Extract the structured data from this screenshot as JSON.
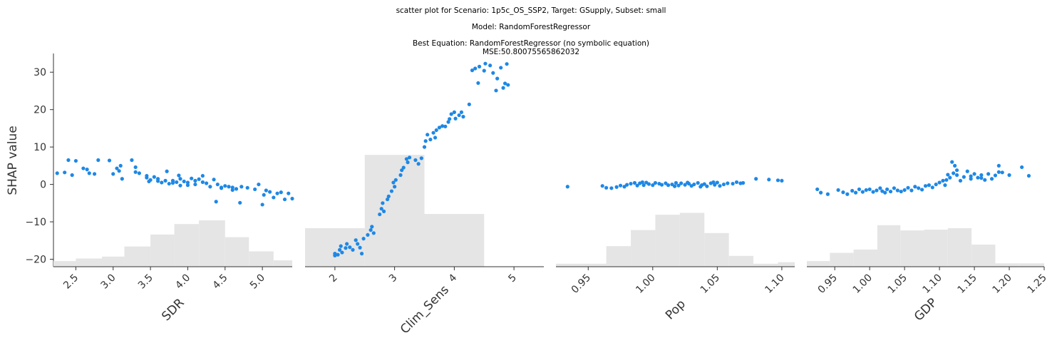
{
  "header": {
    "line1": "scatter plot for Scenario: 1p5c_OS_SSP2, Target: GSupply, Subset: small",
    "line2": "Model: RandomForestRegressor",
    "line3": "Best Equation: RandomForestRegressor (no symbolic equation)",
    "line4": "MSE:50.80075565862032"
  },
  "chart_data": {
    "type": "scatter",
    "ylabel": "SHAP value",
    "ylim": [
      -22,
      35
    ],
    "yticks": [
      -20,
      -10,
      0,
      10,
      20,
      30
    ],
    "ytick_labels": [
      "−20",
      "−10",
      "0",
      "10",
      "20",
      "30"
    ],
    "colors": {
      "points": "#1e88e5",
      "hist": "#e5e5e5",
      "axis": "#333333"
    },
    "panels": [
      {
        "xlabel": "SDR",
        "xlim": [
          2.2,
          5.4
        ],
        "xticks": [
          2.5,
          3.0,
          3.5,
          4.0,
          4.5,
          5.0
        ],
        "xtick_labels": [
          "2.5",
          "3.0",
          "3.5",
          "4.0",
          "4.5",
          "5.0"
        ],
        "rotation": 45,
        "hist_edges": [
          2.2,
          2.5,
          2.85,
          3.15,
          3.5,
          3.82,
          4.15,
          4.5,
          4.82,
          5.15,
          5.4
        ],
        "hist_tops": [
          -20.5,
          -19.8,
          -19.3,
          -16.6,
          -13.4,
          -10.6,
          -9.6,
          -14.1,
          -17.9,
          -20.3
        ],
        "points": [
          [
            2.25,
            3.0
          ],
          [
            2.35,
            3.2
          ],
          [
            2.4,
            6.5
          ],
          [
            2.45,
            2.5
          ],
          [
            2.5,
            6.3
          ],
          [
            2.6,
            4.3
          ],
          [
            2.65,
            4.0
          ],
          [
            2.68,
            3.0
          ],
          [
            2.75,
            2.8
          ],
          [
            2.8,
            6.5
          ],
          [
            2.95,
            6.4
          ],
          [
            3.0,
            2.8
          ],
          [
            3.05,
            4.3
          ],
          [
            3.1,
            5.0
          ],
          [
            3.08,
            3.6
          ],
          [
            3.12,
            1.5
          ],
          [
            3.25,
            6.5
          ],
          [
            3.3,
            4.6
          ],
          [
            3.35,
            3.0
          ],
          [
            3.45,
            1.8
          ],
          [
            3.48,
            0.8
          ],
          [
            3.5,
            1.2
          ],
          [
            3.55,
            2.0
          ],
          [
            3.6,
            1.5
          ],
          [
            3.65,
            0.5
          ],
          [
            3.7,
            1.0
          ],
          [
            3.72,
            3.5
          ],
          [
            3.75,
            0.2
          ],
          [
            3.8,
            1.0
          ],
          [
            3.85,
            0.6
          ],
          [
            3.88,
            2.4
          ],
          [
            3.9,
            -0.3
          ],
          [
            3.95,
            0.8
          ],
          [
            4.0,
            0.5
          ],
          [
            4.05,
            1.6
          ],
          [
            4.1,
            0.0
          ],
          [
            4.15,
            1.4
          ],
          [
            4.2,
            2.3
          ],
          [
            4.25,
            0.3
          ],
          [
            4.3,
            -0.6
          ],
          [
            4.35,
            1.3
          ],
          [
            4.38,
            -4.6
          ],
          [
            4.4,
            0.0
          ],
          [
            4.45,
            -0.8
          ],
          [
            4.5,
            -0.4
          ],
          [
            4.55,
            -0.6
          ],
          [
            4.6,
            -0.8
          ],
          [
            4.65,
            -1.2
          ],
          [
            4.7,
            -4.9
          ],
          [
            4.72,
            -0.6
          ],
          [
            4.8,
            -0.9
          ],
          [
            4.9,
            -1.3
          ],
          [
            4.95,
            0.0
          ],
          [
            5.0,
            -5.4
          ],
          [
            5.02,
            -2.8
          ],
          [
            5.05,
            -1.6
          ],
          [
            5.1,
            -2.0
          ],
          [
            5.15,
            -3.5
          ],
          [
            5.2,
            -2.4
          ],
          [
            5.25,
            -2.1
          ],
          [
            5.3,
            -4.0
          ],
          [
            5.35,
            -2.4
          ],
          [
            5.4,
            -3.8
          ],
          [
            5.45,
            -2.0
          ],
          [
            5.5,
            -2.8
          ],
          [
            3.6,
            0.9
          ],
          [
            3.9,
            1.5
          ],
          [
            4.0,
            -0.2
          ],
          [
            4.2,
            0.6
          ],
          [
            4.45,
            -1.0
          ],
          [
            4.6,
            -1.5
          ],
          [
            3.3,
            3.3
          ],
          [
            3.45,
            2.3
          ],
          [
            3.8,
            0.4
          ],
          [
            4.1,
            1.0
          ]
        ]
      },
      {
        "xlabel": "Clim_Sens",
        "xlim": [
          1.5,
          5.5
        ],
        "xticks": [
          2,
          3,
          4,
          5
        ],
        "xtick_labels": [
          "2",
          "3",
          "4",
          "5"
        ],
        "rotation": 45,
        "hist_edges": [
          1.5,
          2.5,
          3.5,
          4.5
        ],
        "hist_tops": [
          -11.7,
          7.9,
          -7.9
        ],
        "points": [
          [
            2.0,
            -19.0
          ],
          [
            2.0,
            -18.5
          ],
          [
            2.05,
            -18.8
          ],
          [
            2.08,
            -17.5
          ],
          [
            2.1,
            -16.5
          ],
          [
            2.12,
            -18.2
          ],
          [
            2.18,
            -17.0
          ],
          [
            2.2,
            -15.9
          ],
          [
            2.25,
            -16.8
          ],
          [
            2.3,
            -17.5
          ],
          [
            2.35,
            -14.9
          ],
          [
            2.38,
            -15.9
          ],
          [
            2.42,
            -16.9
          ],
          [
            2.45,
            -18.5
          ],
          [
            2.48,
            -14.5
          ],
          [
            2.55,
            -13.5
          ],
          [
            2.6,
            -12.2
          ],
          [
            2.62,
            -11.3
          ],
          [
            2.65,
            -13.0
          ],
          [
            2.75,
            -8.0
          ],
          [
            2.78,
            -6.5
          ],
          [
            2.8,
            -5.0
          ],
          [
            2.82,
            -7.2
          ],
          [
            2.88,
            -4.0
          ],
          [
            2.9,
            -3.2
          ],
          [
            2.95,
            -1.8
          ],
          [
            2.98,
            0.5
          ],
          [
            3.0,
            -0.6
          ],
          [
            3.02,
            1.2
          ],
          [
            3.1,
            2.5
          ],
          [
            3.12,
            3.8
          ],
          [
            3.15,
            4.5
          ],
          [
            3.2,
            6.8
          ],
          [
            3.22,
            5.9
          ],
          [
            3.25,
            7.2
          ],
          [
            3.35,
            6.5
          ],
          [
            3.4,
            5.5
          ],
          [
            3.45,
            7.0
          ],
          [
            3.5,
            10.0
          ],
          [
            3.52,
            11.6
          ],
          [
            3.55,
            13.3
          ],
          [
            3.6,
            12.0
          ],
          [
            3.65,
            13.8
          ],
          [
            3.68,
            12.5
          ],
          [
            3.7,
            14.5
          ],
          [
            3.75,
            15.2
          ],
          [
            3.8,
            15.6
          ],
          [
            3.85,
            15.5
          ],
          [
            3.9,
            16.7
          ],
          [
            3.92,
            17.5
          ],
          [
            3.95,
            18.8
          ],
          [
            4.0,
            19.3
          ],
          [
            4.02,
            17.6
          ],
          [
            4.08,
            18.5
          ],
          [
            4.12,
            19.3
          ],
          [
            4.15,
            18.1
          ],
          [
            4.25,
            21.4
          ],
          [
            4.3,
            30.5
          ],
          [
            4.35,
            31.0
          ],
          [
            4.4,
            27.1
          ],
          [
            4.42,
            31.5
          ],
          [
            4.5,
            30.4
          ],
          [
            4.52,
            32.3
          ],
          [
            4.6,
            31.8
          ],
          [
            4.65,
            29.8
          ],
          [
            4.7,
            25.1
          ],
          [
            4.72,
            28.3
          ],
          [
            4.78,
            31.2
          ],
          [
            4.82,
            25.8
          ],
          [
            4.85,
            27.0
          ],
          [
            4.88,
            32.2
          ],
          [
            4.9,
            26.6
          ]
        ]
      },
      {
        "xlabel": "Pop",
        "xlim": [
          0.925,
          1.11
        ],
        "xticks": [
          0.95,
          1.0,
          1.05,
          1.1
        ],
        "xtick_labels": [
          "0.95",
          "1.00",
          "1.05",
          "1.10"
        ],
        "rotation": 45,
        "hist_edges": [
          0.925,
          0.945,
          0.964,
          0.983,
          1.002,
          1.021,
          1.04,
          1.059,
          1.078,
          1.097,
          1.11
        ],
        "hist_tops": [
          -21.2,
          -21.2,
          -16.5,
          -12.2,
          -8.1,
          -7.6,
          -13.0,
          -19.1,
          -21.2,
          -20.8
        ],
        "points": [
          [
            0.934,
            -0.6
          ],
          [
            0.961,
            -0.4
          ],
          [
            0.964,
            -0.9
          ],
          [
            0.968,
            -1.0
          ],
          [
            0.972,
            -0.7
          ],
          [
            0.975,
            -0.3
          ],
          [
            0.978,
            -0.6
          ],
          [
            0.98,
            -0.1
          ],
          [
            0.983,
            0.2
          ],
          [
            0.986,
            0.4
          ],
          [
            0.988,
            -0.3
          ],
          [
            0.99,
            0.3
          ],
          [
            0.993,
            -0.2
          ],
          [
            0.995,
            0.5
          ],
          [
            0.997,
            0.1
          ],
          [
            1.0,
            -0.2
          ],
          [
            1.002,
            0.4
          ],
          [
            1.005,
            0.2
          ],
          [
            1.007,
            -0.1
          ],
          [
            1.01,
            0.3
          ],
          [
            1.012,
            -0.2
          ],
          [
            1.015,
            0.0
          ],
          [
            1.018,
            0.4
          ],
          [
            1.02,
            -0.3
          ],
          [
            1.022,
            0.3
          ],
          [
            1.025,
            -0.1
          ],
          [
            1.028,
            0.2
          ],
          [
            1.03,
            -0.4
          ],
          [
            1.032,
            0.0
          ],
          [
            1.035,
            0.4
          ],
          [
            1.038,
            -0.2
          ],
          [
            1.04,
            0.1
          ],
          [
            1.042,
            -0.5
          ],
          [
            1.045,
            0.3
          ],
          [
            1.048,
            -0.1
          ],
          [
            1.05,
            0.5
          ],
          [
            1.052,
            -0.4
          ],
          [
            1.055,
            0.0
          ],
          [
            1.058,
            0.3
          ],
          [
            1.062,
            0.2
          ],
          [
            1.065,
            0.6
          ],
          [
            1.068,
            0.3
          ],
          [
            1.07,
            0.4
          ],
          [
            1.08,
            1.5
          ],
          [
            1.09,
            1.3
          ],
          [
            1.097,
            1.1
          ],
          [
            1.1,
            1.0
          ],
          [
            0.992,
            0.6
          ],
          [
            1.017,
            -0.5
          ],
          [
            1.027,
            0.5
          ],
          [
            1.037,
            -0.6
          ],
          [
            1.047,
            0.6
          ]
        ]
      },
      {
        "xlabel": "GDP",
        "xlim": [
          0.91,
          1.25
        ],
        "xticks": [
          0.95,
          1.0,
          1.05,
          1.1,
          1.15,
          1.2,
          1.25
        ],
        "xtick_labels": [
          "0.95",
          "1.00",
          "1.05",
          "1.10",
          "1.15",
          "1.20",
          "1.25"
        ],
        "rotation": 45,
        "hist_edges": [
          0.91,
          0.943,
          0.977,
          1.011,
          1.044,
          1.078,
          1.112,
          1.146,
          1.18,
          1.214,
          1.25
        ],
        "hist_tops": [
          -20.5,
          -18.3,
          -17.4,
          -10.9,
          -12.3,
          -12.1,
          -11.7,
          -16.1,
          -21.1,
          -21.1
        ],
        "points": [
          [
            0.925,
            -1.3
          ],
          [
            0.93,
            -2.2
          ],
          [
            0.94,
            -2.6
          ],
          [
            0.955,
            -1.5
          ],
          [
            0.962,
            -2.1
          ],
          [
            0.968,
            -2.6
          ],
          [
            0.975,
            -1.7
          ],
          [
            0.98,
            -2.2
          ],
          [
            0.985,
            -1.3
          ],
          [
            0.99,
            -2.0
          ],
          [
            0.995,
            -1.5
          ],
          [
            1.0,
            -1.3
          ],
          [
            1.005,
            -2.0
          ],
          [
            1.01,
            -1.6
          ],
          [
            1.015,
            -1.0
          ],
          [
            1.018,
            -1.8
          ],
          [
            1.022,
            -2.2
          ],
          [
            1.025,
            -1.3
          ],
          [
            1.03,
            -1.9
          ],
          [
            1.035,
            -1.0
          ],
          [
            1.04,
            -1.6
          ],
          [
            1.045,
            -1.9
          ],
          [
            1.05,
            -1.5
          ],
          [
            1.055,
            -0.9
          ],
          [
            1.06,
            -1.6
          ],
          [
            1.065,
            -0.6
          ],
          [
            1.07,
            -1.0
          ],
          [
            1.075,
            -1.4
          ],
          [
            1.08,
            -0.4
          ],
          [
            1.085,
            -0.2
          ],
          [
            1.09,
            -0.8
          ],
          [
            1.095,
            0.0
          ],
          [
            1.1,
            0.5
          ],
          [
            1.105,
            1.0
          ],
          [
            1.108,
            -0.2
          ],
          [
            1.112,
            2.6
          ],
          [
            1.115,
            1.8
          ],
          [
            1.118,
            6.0
          ],
          [
            1.12,
            3.0
          ],
          [
            1.122,
            5.0
          ],
          [
            1.125,
            3.8
          ],
          [
            1.13,
            1.0
          ],
          [
            1.135,
            2.0
          ],
          [
            1.14,
            3.5
          ],
          [
            1.145,
            1.5
          ],
          [
            1.15,
            2.8
          ],
          [
            1.155,
            1.8
          ],
          [
            1.16,
            2.5
          ],
          [
            1.165,
            1.2
          ],
          [
            1.17,
            2.8
          ],
          [
            1.175,
            1.5
          ],
          [
            1.18,
            2.4
          ],
          [
            1.185,
            3.3
          ],
          [
            1.19,
            3.2
          ],
          [
            1.2,
            2.5
          ],
          [
            1.218,
            4.6
          ],
          [
            1.228,
            2.3
          ],
          [
            1.11,
            1.2
          ],
          [
            1.125,
            2.5
          ],
          [
            1.145,
            2.2
          ],
          [
            1.16,
            1.7
          ],
          [
            1.185,
            5.0
          ]
        ]
      }
    ]
  }
}
